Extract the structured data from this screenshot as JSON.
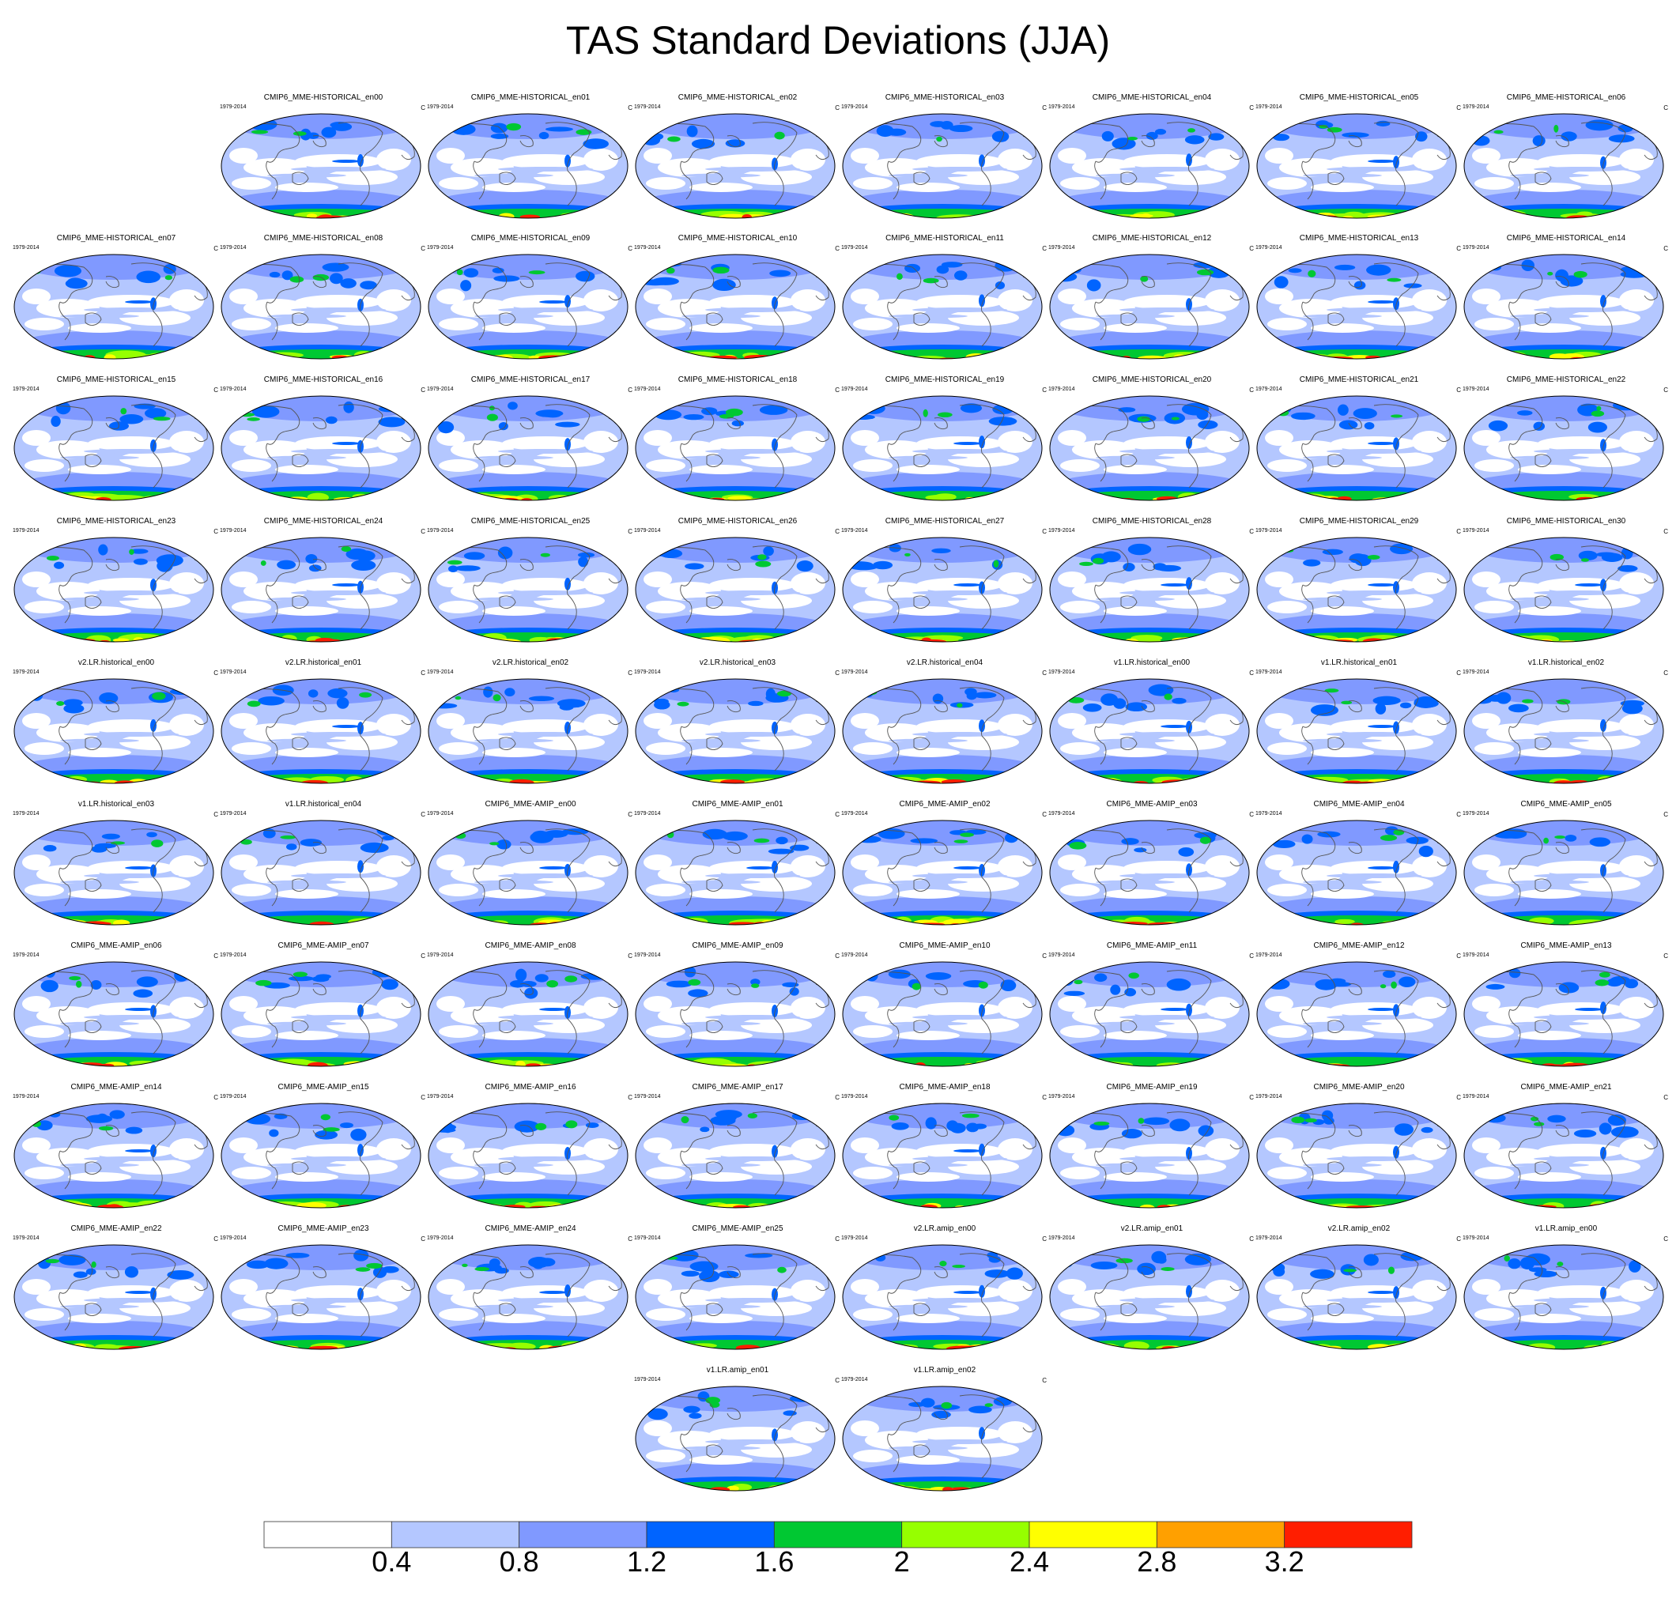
{
  "title": "TAS Standard Deviations (JJA)",
  "period": "1979-2014",
  "units": "C",
  "panels": [
    "CMIP6_MME-HISTORICAL_en00",
    "CMIP6_MME-HISTORICAL_en01",
    "CMIP6_MME-HISTORICAL_en02",
    "CMIP6_MME-HISTORICAL_en03",
    "CMIP6_MME-HISTORICAL_en04",
    "CMIP6_MME-HISTORICAL_en05",
    "CMIP6_MME-HISTORICAL_en06",
    "CMIP6_MME-HISTORICAL_en07",
    "CMIP6_MME-HISTORICAL_en08",
    "CMIP6_MME-HISTORICAL_en09",
    "CMIP6_MME-HISTORICAL_en10",
    "CMIP6_MME-HISTORICAL_en11",
    "CMIP6_MME-HISTORICAL_en12",
    "CMIP6_MME-HISTORICAL_en13",
    "CMIP6_MME-HISTORICAL_en14",
    "CMIP6_MME-HISTORICAL_en15",
    "CMIP6_MME-HISTORICAL_en16",
    "CMIP6_MME-HISTORICAL_en17",
    "CMIP6_MME-HISTORICAL_en18",
    "CMIP6_MME-HISTORICAL_en19",
    "CMIP6_MME-HISTORICAL_en20",
    "CMIP6_MME-HISTORICAL_en21",
    "CMIP6_MME-HISTORICAL_en22",
    "CMIP6_MME-HISTORICAL_en23",
    "CMIP6_MME-HISTORICAL_en24",
    "CMIP6_MME-HISTORICAL_en25",
    "CMIP6_MME-HISTORICAL_en26",
    "CMIP6_MME-HISTORICAL_en27",
    "CMIP6_MME-HISTORICAL_en28",
    "CMIP6_MME-HISTORICAL_en29",
    "CMIP6_MME-HISTORICAL_en30",
    "v2.LR.historical_en00",
    "v2.LR.historical_en01",
    "v2.LR.historical_en02",
    "v2.LR.historical_en03",
    "v2.LR.historical_en04",
    "v1.LR.historical_en00",
    "v1.LR.historical_en01",
    "v1.LR.historical_en02",
    "v1.LR.historical_en03",
    "v1.LR.historical_en04",
    "CMIP6_MME-AMIP_en00",
    "CMIP6_MME-AMIP_en01",
    "CMIP6_MME-AMIP_en02",
    "CMIP6_MME-AMIP_en03",
    "CMIP6_MME-AMIP_en04",
    "CMIP6_MME-AMIP_en05",
    "CMIP6_MME-AMIP_en06",
    "CMIP6_MME-AMIP_en07",
    "CMIP6_MME-AMIP_en08",
    "CMIP6_MME-AMIP_en09",
    "CMIP6_MME-AMIP_en10",
    "CMIP6_MME-AMIP_en11",
    "CMIP6_MME-AMIP_en12",
    "CMIP6_MME-AMIP_en13",
    "CMIP6_MME-AMIP_en14",
    "CMIP6_MME-AMIP_en15",
    "CMIP6_MME-AMIP_en16",
    "CMIP6_MME-AMIP_en17",
    "CMIP6_MME-AMIP_en18",
    "CMIP6_MME-AMIP_en19",
    "CMIP6_MME-AMIP_en20",
    "CMIP6_MME-AMIP_en21",
    "CMIP6_MME-AMIP_en22",
    "CMIP6_MME-AMIP_en23",
    "CMIP6_MME-AMIP_en24",
    "CMIP6_MME-AMIP_en25",
    "v2.LR.amip_en00",
    "v2.LR.amip_en01",
    "v2.LR.amip_en02",
    "v1.LR.amip_en00",
    "v1.LR.amip_en01",
    "v1.LR.amip_en02"
  ],
  "colorbar": {
    "colors": [
      "#ffffff",
      "#b4c7ff",
      "#8099ff",
      "#0064ff",
      "#00c832",
      "#96ff00",
      "#ffff00",
      "#ffa000",
      "#ff1e00"
    ],
    "labels": [
      "0.4",
      "0.8",
      "1.2",
      "1.6",
      "2",
      "2.4",
      "2.8",
      "3.2"
    ]
  }
}
